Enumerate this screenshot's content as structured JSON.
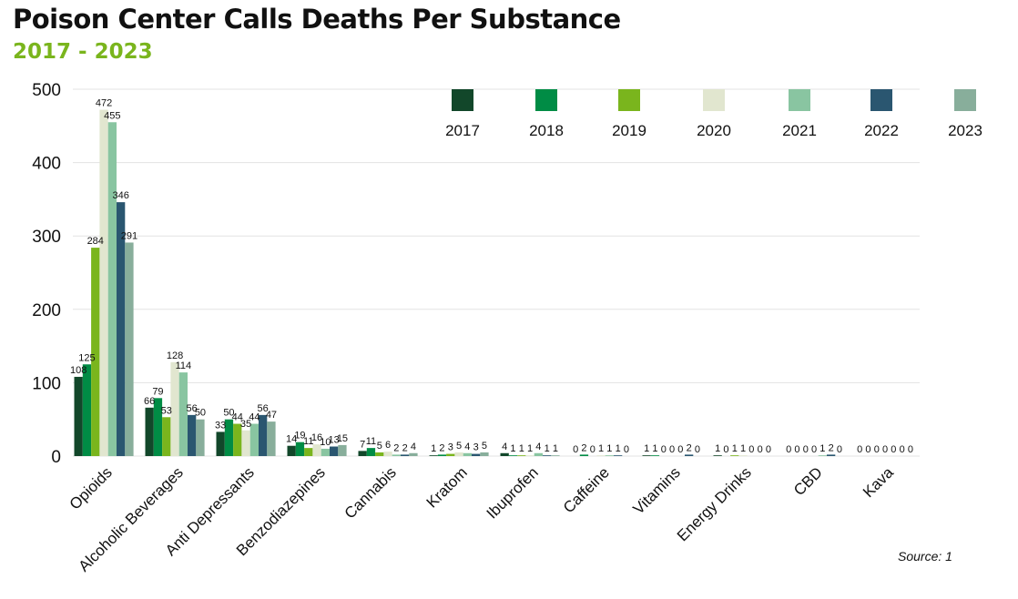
{
  "chart_data": {
    "type": "bar",
    "title": "Poison Center Calls Deaths Per Substance",
    "subtitle": "2017 - 2023",
    "source": "Source: 1",
    "xlabel": "",
    "ylabel": "",
    "ylim": [
      0,
      500
    ],
    "yticks": [
      0,
      100,
      200,
      300,
      400,
      500
    ],
    "grid": true,
    "legend_position": "top-right",
    "categories": [
      "Opioids",
      "Alcoholic Beverages",
      "Anti Depressants",
      "Benzodiazepines",
      "Cannabis",
      "Kratom",
      "Ibuprofen",
      "Caffeine",
      "Vitamins",
      "Energy Drinks",
      "CBD",
      "Kava"
    ],
    "series": [
      {
        "name": "2017",
        "color": "#12472a",
        "values": [
          108,
          66,
          33,
          14,
          7,
          1,
          4,
          0,
          1,
          1,
          0,
          0
        ]
      },
      {
        "name": "2018",
        "color": "#008c45",
        "values": [
          125,
          79,
          50,
          19,
          11,
          2,
          1,
          2,
          1,
          0,
          0,
          0
        ]
      },
      {
        "name": "2019",
        "color": "#7ab51d",
        "values": [
          284,
          53,
          44,
          11,
          5,
          3,
          1,
          0,
          0,
          1,
          0,
          0
        ]
      },
      {
        "name": "2020",
        "color": "#e1e6cf",
        "values": [
          472,
          128,
          35,
          16,
          6,
          5,
          1,
          1,
          0,
          1,
          0,
          0
        ]
      },
      {
        "name": "2021",
        "color": "#89c5a1",
        "values": [
          455,
          114,
          44,
          10,
          2,
          4,
          4,
          1,
          0,
          0,
          1,
          0
        ]
      },
      {
        "name": "2022",
        "color": "#2a5670",
        "values": [
          346,
          56,
          56,
          13,
          2,
          3,
          1,
          1,
          2,
          0,
          2,
          0
        ]
      },
      {
        "name": "2023",
        "color": "#88ae9b",
        "values": [
          291,
          50,
          47,
          15,
          4,
          5,
          1,
          0,
          0,
          0,
          0,
          0
        ]
      }
    ]
  }
}
